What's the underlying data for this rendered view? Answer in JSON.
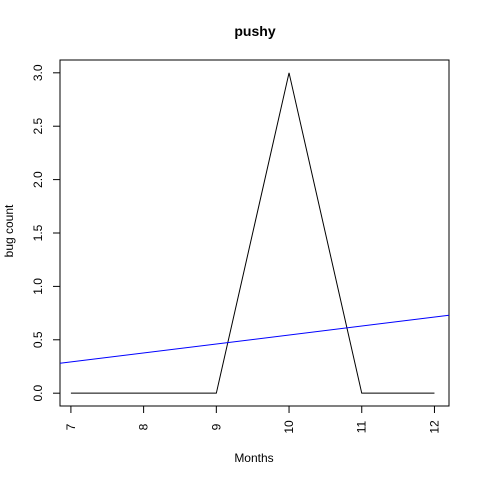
{
  "chart_data": {
    "type": "line",
    "title": "pushy",
    "xlabel": "Months",
    "ylabel": "bug count",
    "xlim": [
      6.85,
      12.2
    ],
    "ylim": [
      -0.12,
      3.12
    ],
    "x_ticks": [
      7,
      8,
      9,
      10,
      11,
      12
    ],
    "x_tick_labels": [
      "7",
      "8",
      "9",
      "10",
      "11",
      "12"
    ],
    "y_ticks": [
      0,
      0.5,
      1,
      1.5,
      2,
      2.5,
      3
    ],
    "y_tick_labels": [
      "0.0",
      "0.5",
      "1.0",
      "1.5",
      "2.0",
      "2.5",
      "3.0"
    ],
    "grid": false,
    "series": [
      {
        "color": "#000000",
        "x": [
          7,
          8,
          9,
          10,
          11,
          12
        ],
        "y": [
          0,
          0,
          0,
          3,
          0,
          0
        ]
      }
    ],
    "trend_line": {
      "color": "#0000ff",
      "x": [
        6.85,
        12.2
      ],
      "y": [
        0.28,
        0.73
      ]
    }
  }
}
